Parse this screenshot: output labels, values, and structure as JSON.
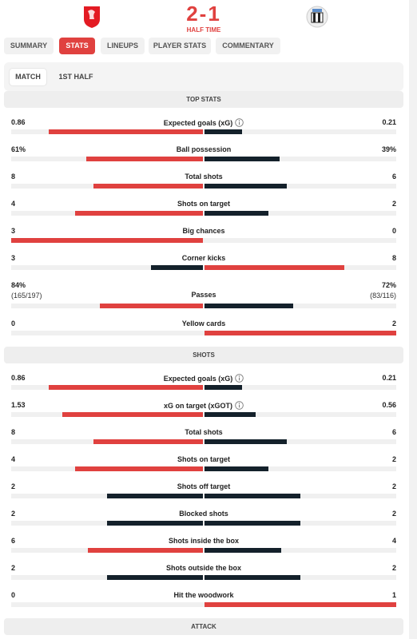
{
  "header": {
    "score": "2-1",
    "status": "HALF TIME"
  },
  "tabs": [
    "SUMMARY",
    "STATS",
    "LINEUPS",
    "PLAYER STATS",
    "COMMENTARY"
  ],
  "period_tabs": [
    "MATCH",
    "1ST HALF"
  ],
  "sections": [
    {
      "title": "TOP STATS",
      "rows": [
        {
          "label": "Expected goals (xG)",
          "home": "0.86",
          "away": "0.21",
          "info": true
        },
        {
          "label": "Ball possession",
          "home": "61%",
          "away": "39%"
        },
        {
          "label": "Total shots",
          "home": "8",
          "away": "6"
        },
        {
          "label": "Shots on target",
          "home": "4",
          "away": "2"
        },
        {
          "label": "Big chances",
          "home": "3",
          "away": "0"
        },
        {
          "label": "Corner kicks",
          "home": "3",
          "away": "8"
        },
        {
          "label": "Passes",
          "home": "84%",
          "home_detail": "(165/197)",
          "away": "72%",
          "away_detail": "(83/116)"
        },
        {
          "label": "Yellow cards",
          "home": "0",
          "away": "2"
        }
      ]
    },
    {
      "title": "SHOTS",
      "rows": [
        {
          "label": "Expected goals (xG)",
          "home": "0.86",
          "away": "0.21",
          "info": true
        },
        {
          "label": "xG on target (xGOT)",
          "home": "1.53",
          "away": "0.56",
          "info": true
        },
        {
          "label": "Total shots",
          "home": "8",
          "away": "6"
        },
        {
          "label": "Shots on target",
          "home": "4",
          "away": "2"
        },
        {
          "label": "Shots off target",
          "home": "2",
          "away": "2"
        },
        {
          "label": "Blocked shots",
          "home": "2",
          "away": "2"
        },
        {
          "label": "Shots inside the box",
          "home": "6",
          "away": "4"
        },
        {
          "label": "Shots outside the box",
          "home": "2",
          "away": "2"
        },
        {
          "label": "Hit the woodwork",
          "home": "0",
          "away": "1"
        }
      ]
    },
    {
      "title": "ATTACK"
    }
  ]
}
